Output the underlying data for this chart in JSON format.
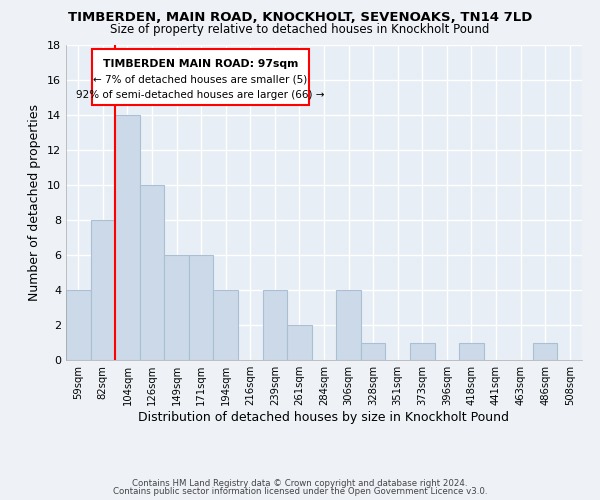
{
  "title": "TIMBERDEN, MAIN ROAD, KNOCKHOLT, SEVENOAKS, TN14 7LD",
  "subtitle": "Size of property relative to detached houses in Knockholt Pound",
  "xlabel": "Distribution of detached houses by size in Knockholt Pound",
  "ylabel": "Number of detached properties",
  "bar_color": "#ccd9e8",
  "bar_edge_color": "#a8bfd4",
  "tick_labels": [
    "59sqm",
    "82sqm",
    "104sqm",
    "126sqm",
    "149sqm",
    "171sqm",
    "194sqm",
    "216sqm",
    "239sqm",
    "261sqm",
    "284sqm",
    "306sqm",
    "328sqm",
    "351sqm",
    "373sqm",
    "396sqm",
    "418sqm",
    "441sqm",
    "463sqm",
    "486sqm",
    "508sqm"
  ],
  "bar_heights": [
    4,
    8,
    14,
    10,
    6,
    6,
    4,
    0,
    4,
    2,
    0,
    4,
    1,
    0,
    1,
    0,
    1,
    0,
    0,
    1,
    0
  ],
  "ylim": [
    0,
    18
  ],
  "yticks": [
    0,
    2,
    4,
    6,
    8,
    10,
    12,
    14,
    16,
    18
  ],
  "red_line_index": 2,
  "annotation_line1": "TIMBERDEN MAIN ROAD: 97sqm",
  "annotation_line2": "← 7% of detached houses are smaller (5)",
  "annotation_line3": "92% of semi-detached houses are larger (66) →",
  "footer_line1": "Contains HM Land Registry data © Crown copyright and database right 2024.",
  "footer_line2": "Contains public sector information licensed under the Open Government Licence v3.0.",
  "background_color": "#eef2f7",
  "grid_color": "#d0dae8",
  "plot_bg_color": "#e8eef5"
}
